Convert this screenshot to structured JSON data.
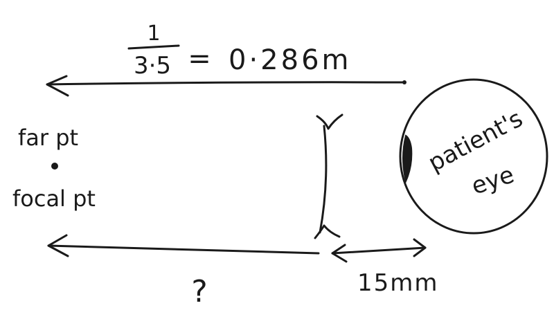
{
  "top_formula": {
    "numerator": "1",
    "denominator": "3·5",
    "equals": "=",
    "result": "0·286m"
  },
  "labels": {
    "far_point": "far pt",
    "focal_point": "focal pt",
    "patient_eye_line1": "patient's",
    "patient_eye_line2": "eye",
    "unknown": "?",
    "lens_distance": "15mm"
  },
  "colors": {
    "ink": "#1a1a1a",
    "background": "#ffffff"
  }
}
